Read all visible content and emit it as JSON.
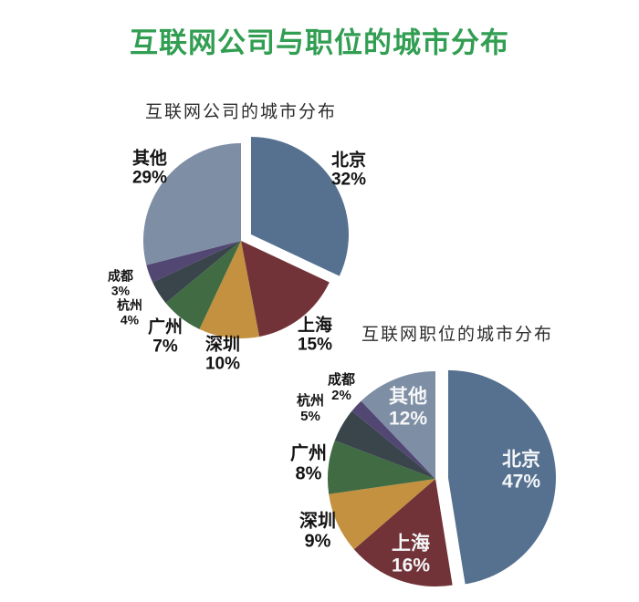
{
  "header": {
    "title": "互联网公司与职位的城市分布",
    "color": "#319e52"
  },
  "chart_data": [
    {
      "type": "pie",
      "title": "互联网公司的城市分布",
      "start_angle": "top",
      "direction": "clockwise",
      "legend_position": "none",
      "label_placement": "outside",
      "categories": [
        "北京",
        "上海",
        "深圳",
        "广州",
        "杭州",
        "成都",
        "其他"
      ],
      "values": [
        32,
        15,
        10,
        7,
        4,
        3,
        29
      ],
      "slices": [
        {
          "city": "北京",
          "value": 32,
          "pct": "32%",
          "color": "#56718f",
          "exploded": true
        },
        {
          "city": "上海",
          "value": 15,
          "pct": "15%",
          "color": "#713338",
          "exploded": false
        },
        {
          "city": "深圳",
          "value": 10,
          "pct": "10%",
          "color": "#c3913f",
          "exploded": false
        },
        {
          "city": "广州",
          "value": 7,
          "pct": "7%",
          "color": "#416b43",
          "exploded": false
        },
        {
          "city": "杭州",
          "value": 4,
          "pct": "4%",
          "color": "#39444b",
          "exploded": false
        },
        {
          "city": "成都",
          "value": 3,
          "pct": "3%",
          "color": "#524673",
          "exploded": false
        },
        {
          "city": "其他",
          "value": 29,
          "pct": "29%",
          "color": "#7e8fa5",
          "exploded": false
        }
      ]
    },
    {
      "type": "pie",
      "title": "互联网职位的城市分布",
      "start_angle": "top",
      "direction": "clockwise",
      "legend_position": "none",
      "label_placement": "outside-small-cities, inside-white for 北京/上海/其他",
      "categories": [
        "北京",
        "上海",
        "深圳",
        "广州",
        "杭州",
        "成都",
        "其他"
      ],
      "values": [
        47,
        16,
        9,
        8,
        5,
        2,
        12
      ],
      "slices": [
        {
          "city": "北京",
          "value": 47,
          "pct": "47%",
          "color": "#56718f",
          "exploded": true
        },
        {
          "city": "上海",
          "value": 16,
          "pct": "16%",
          "color": "#713338",
          "exploded": false
        },
        {
          "city": "深圳",
          "value": 9,
          "pct": "9%",
          "color": "#c3913f",
          "exploded": false
        },
        {
          "city": "广州",
          "value": 8,
          "pct": "8%",
          "color": "#416b43",
          "exploded": false
        },
        {
          "city": "杭州",
          "value": 5,
          "pct": "5%",
          "color": "#39444b",
          "exploded": false
        },
        {
          "city": "成都",
          "value": 2,
          "pct": "2%",
          "color": "#524673",
          "exploded": false
        },
        {
          "city": "其他",
          "value": 12,
          "pct": "12%",
          "color": "#7e8fa5",
          "exploded": false
        }
      ]
    }
  ]
}
